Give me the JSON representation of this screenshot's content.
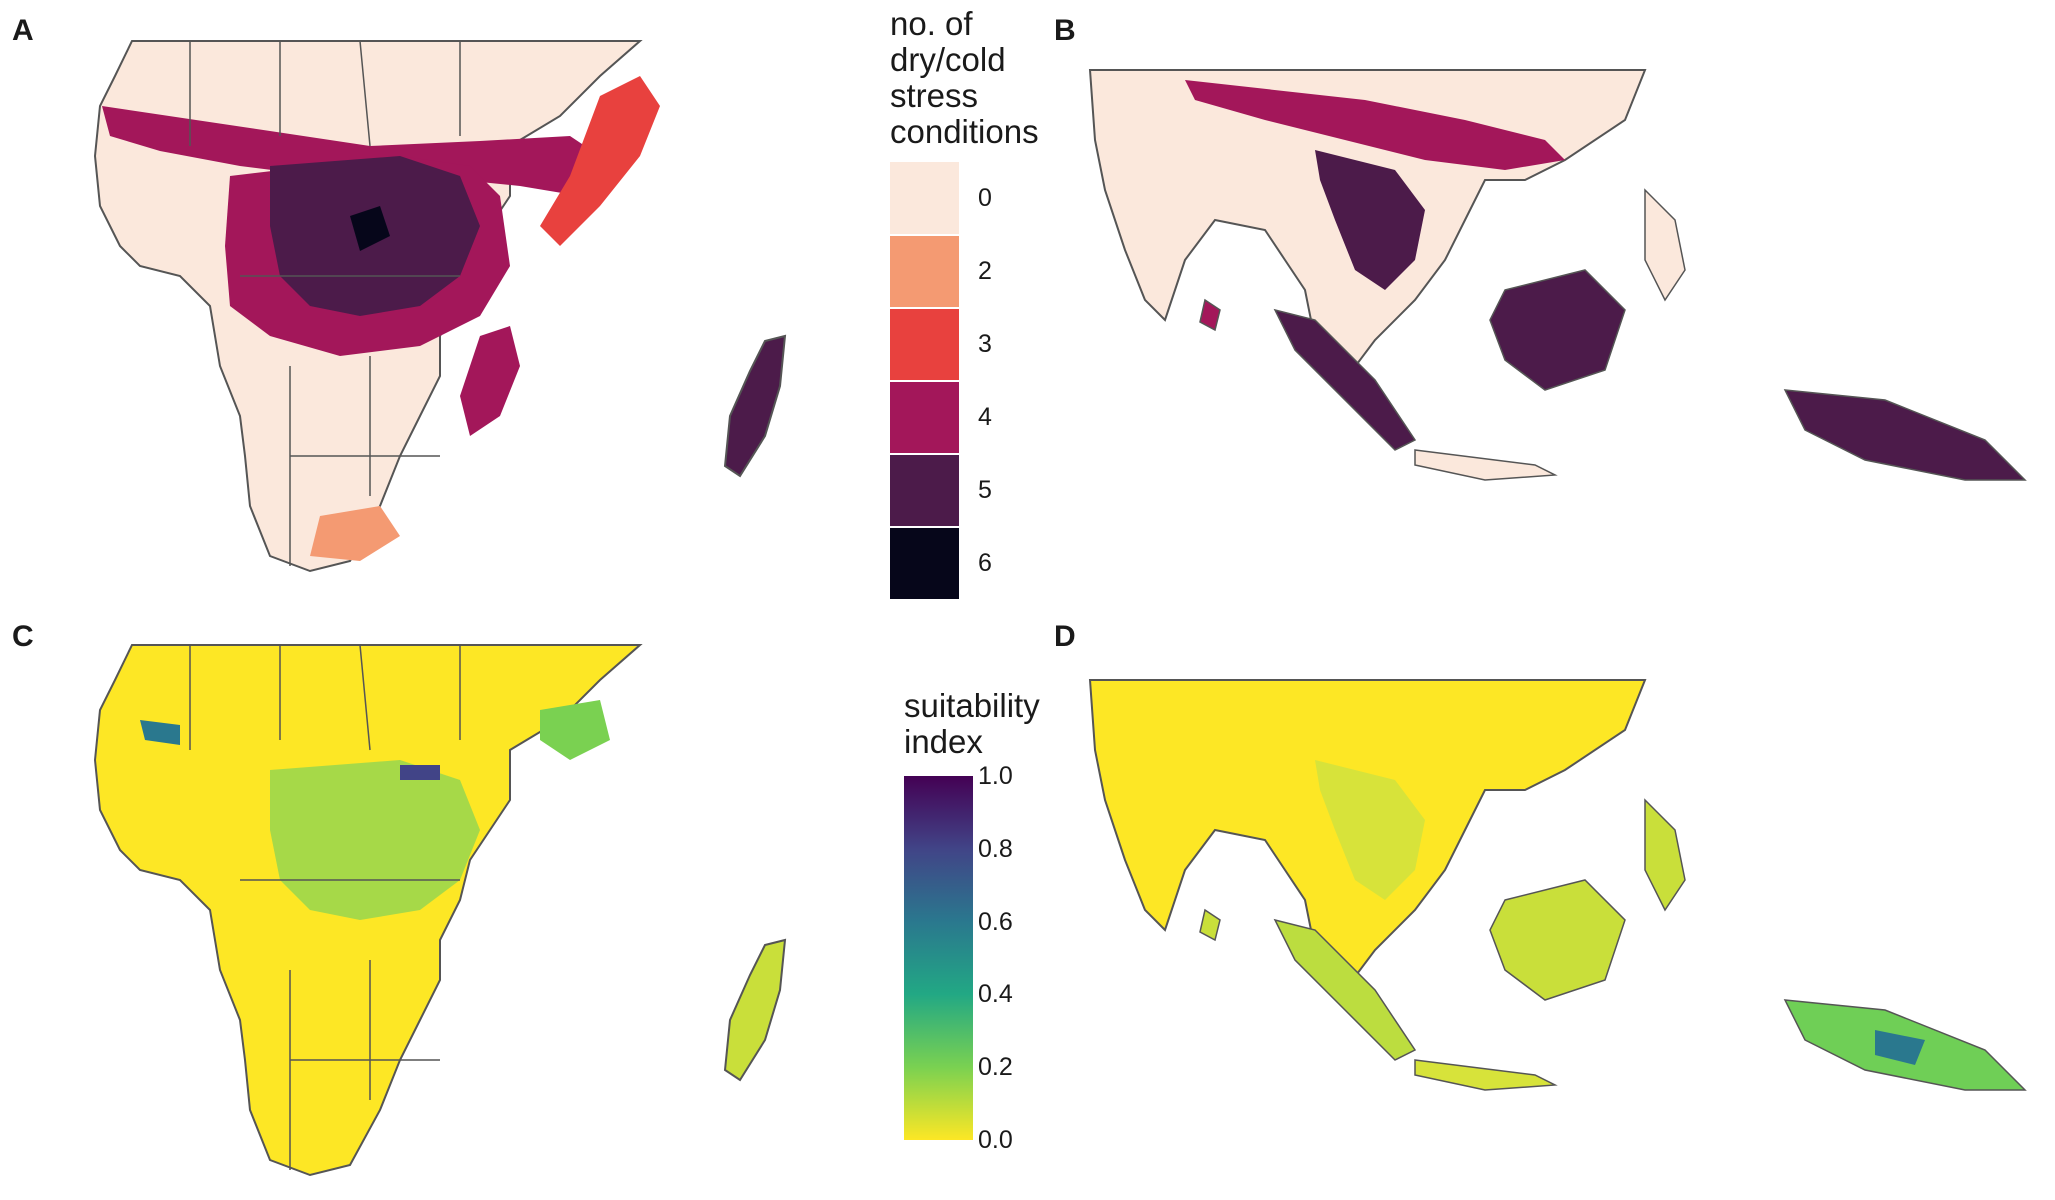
{
  "panels": [
    {
      "label": "A"
    },
    {
      "label": "B"
    },
    {
      "label": "C"
    },
    {
      "label": "D"
    }
  ],
  "legend_stress": {
    "title": "no. of\ndry/cold\nstress\nconditions",
    "levels": [
      {
        "label": "0",
        "color": "#fbe8dc"
      },
      {
        "label": "2",
        "color": "#f49a72"
      },
      {
        "label": "3",
        "color": "#e8413e"
      },
      {
        "label": "4",
        "color": "#a3175a"
      },
      {
        "label": "5",
        "color": "#4c1b4a"
      },
      {
        "label": "6",
        "color": "#06061a"
      }
    ]
  },
  "legend_suitability": {
    "title": "suitability\nindex",
    "ticks": [
      "1.0",
      "0.8",
      "0.6",
      "0.4",
      "0.2",
      "0.0"
    ],
    "palette": [
      "#440154",
      "#414487",
      "#2a788e",
      "#22a884",
      "#7ad151",
      "#fde725"
    ]
  },
  "colors": {
    "border": "#555555",
    "stress_base": "#fbe8dc",
    "suit_base": "#fde725"
  }
}
